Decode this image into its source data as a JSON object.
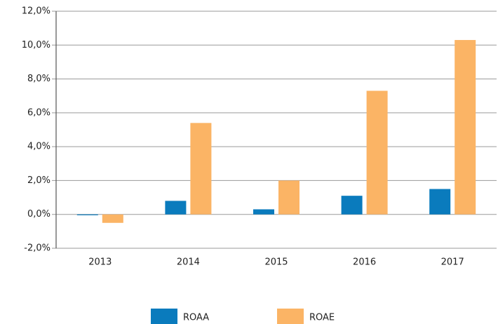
{
  "chart_data": {
    "type": "bar",
    "categories": [
      "2013",
      "2014",
      "2015",
      "2016",
      "2017"
    ],
    "series": [
      {
        "name": "ROAA",
        "color": "#0a7bbd",
        "values": [
          -0.05,
          0.8,
          0.3,
          1.1,
          1.5
        ]
      },
      {
        "name": "ROAE",
        "color": "#fbb465",
        "values": [
          -0.5,
          5.4,
          2.0,
          7.3,
          10.3
        ]
      }
    ],
    "ylim": [
      -2,
      12
    ],
    "yticks": [
      {
        "value": -2,
        "label": "-2,0%"
      },
      {
        "value": 0,
        "label": "0,0%"
      },
      {
        "value": 2,
        "label": "2,0%"
      },
      {
        "value": 4,
        "label": "4,0%"
      },
      {
        "value": 6,
        "label": "6,0%"
      },
      {
        "value": 8,
        "label": "8,0%"
      },
      {
        "value": 10,
        "label": "10,0%"
      },
      {
        "value": 12,
        "label": "12,0%"
      }
    ],
    "grid": true
  }
}
